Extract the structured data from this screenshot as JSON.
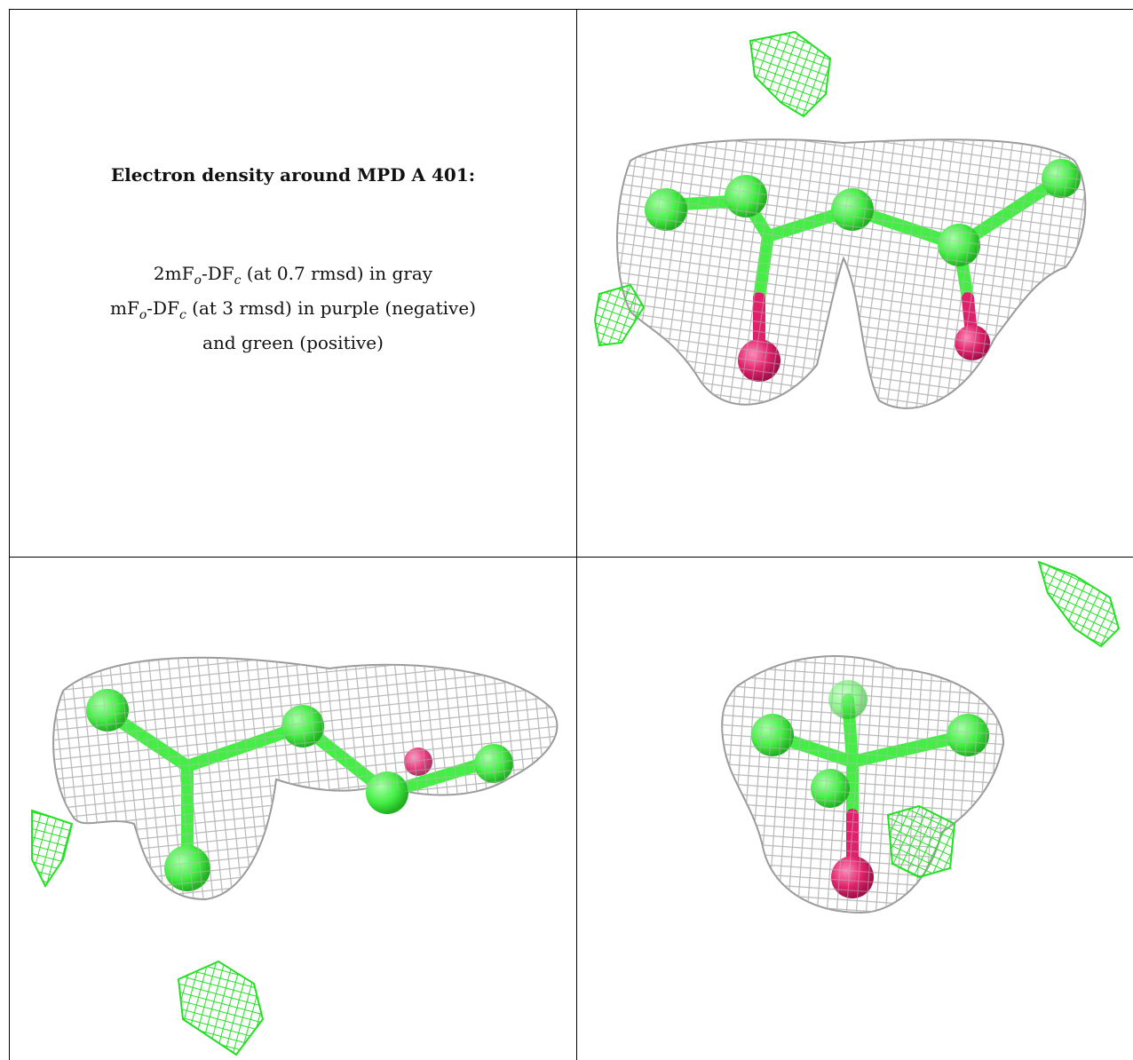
{
  "caption": {
    "title": "Electron density around MPD A 401:",
    "line1_a": "2mF",
    "line1_sub_o": "o",
    "line1_b": "-DF",
    "line1_sub_c": "c",
    "line1_c": " (at 0.7 rmsd) in gray",
    "line2_a": "mF",
    "line2_sub_o": "o",
    "line2_b": "-DF",
    "line2_sub_c": "c",
    "line2_c": " (at 3 rmsd) in purple (negative)",
    "line3": "and green (positive)"
  },
  "colors": {
    "mesh_gray": "#b9b9b9",
    "mesh_green": "#22e022",
    "carbon_green": "#44ee44",
    "oxygen_pink": "#e0206a",
    "grid_line": "#000000"
  },
  "views": [
    {
      "name": "top-right-view"
    },
    {
      "name": "bottom-left-view"
    },
    {
      "name": "bottom-right-view"
    }
  ]
}
